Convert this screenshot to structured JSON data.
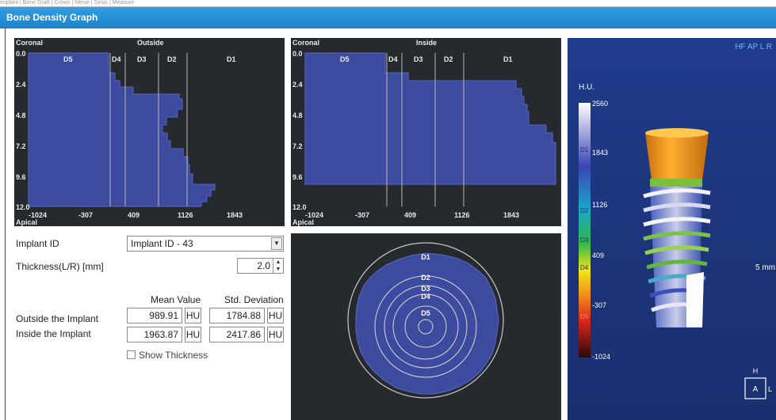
{
  "window": {
    "title": "Bone Density Graph",
    "top_strip": "Implant | Bone Graft | Crown | Nerve | Sinus | Measure"
  },
  "outside_graph": {
    "title": "Outside",
    "coronal_label": "Coronal",
    "apical_label": "Apical",
    "zones": [
      "D5",
      "D4",
      "D3",
      "D2",
      "D1"
    ],
    "y_ticks": [
      "0.0",
      "2.4",
      "4.8",
      "7.2",
      "9.6",
      "12.0"
    ],
    "x_ticks": [
      "-1024",
      "-307",
      "409",
      "1126",
      "1843"
    ]
  },
  "inside_graph": {
    "title": "Inside",
    "coronal_label": "Coronal",
    "apical_label": "Apical",
    "zones": [
      "D5",
      "D4",
      "D3",
      "D2",
      "D1"
    ],
    "y_ticks": [
      "0.0",
      "2.4",
      "4.8",
      "7.2",
      "9.6",
      "12.0"
    ],
    "x_ticks": [
      "-1024",
      "-307",
      "409",
      "1126",
      "1843"
    ]
  },
  "form": {
    "implant_id_label": "Implant ID",
    "implant_id_value": "Implant ID -  43",
    "thickness_label": "Thickness(L/R) [mm]",
    "thickness_value": "2.0",
    "mean_header": "Mean Value",
    "std_header": "Std. Deviation",
    "outside_label": "Outside the Implant",
    "inside_label": "Inside the Implant",
    "outside_mean": "989.91",
    "outside_std": "1784.88",
    "inside_mean": "1963.87",
    "inside_std": "2417.86",
    "unit": "HU",
    "show_thickness_label": "Show Thickness",
    "show_thickness_checked": false
  },
  "cross_section": {
    "labels": [
      "D1",
      "D2",
      "D3",
      "D4",
      "D5"
    ]
  },
  "viewer": {
    "orientation": "HF AP L R",
    "hu_label": "H.U.",
    "scale_values": [
      "2560",
      "1843",
      "1126",
      "409",
      "-307",
      "-1024"
    ],
    "zone_labels": [
      "D1",
      "D2",
      "D3",
      "D4",
      "D5"
    ],
    "measure_label": "5 mm",
    "cube_top": "H",
    "cube_face": "A",
    "cube_side": "L"
  },
  "colors": {
    "titlebar": "#2384cf",
    "panel_bg": "#262a2f",
    "density_fill": "#3d4b9e",
    "gridline": "#b7b7b7"
  }
}
